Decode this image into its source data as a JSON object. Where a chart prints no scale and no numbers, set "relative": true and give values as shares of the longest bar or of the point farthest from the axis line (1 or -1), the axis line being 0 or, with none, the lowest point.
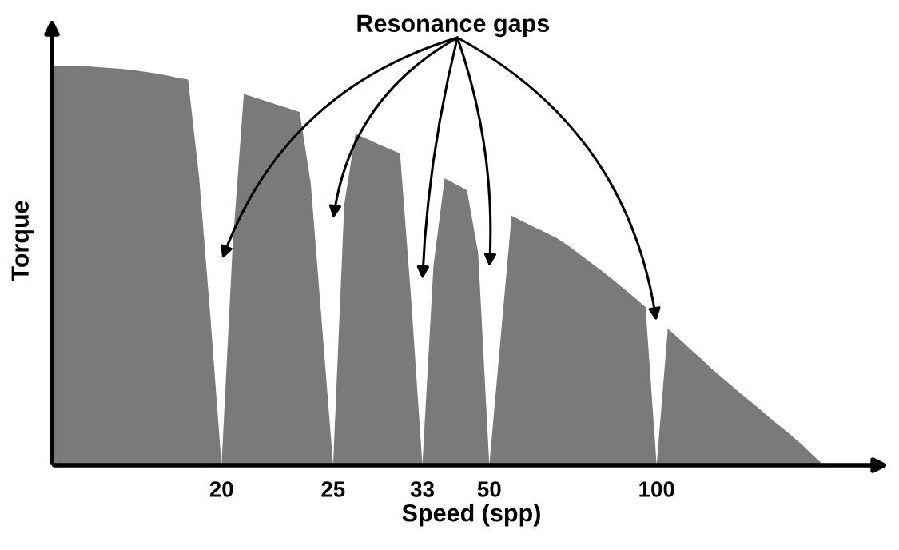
{
  "chart_data": {
    "type": "area",
    "relative": true,
    "xlabel": "Speed (spp)",
    "ylabel": "Torque",
    "annotations": [
      "Resonance gaps"
    ],
    "categories": [
      null,
      null,
      null,
      null,
      null,
      null,
      null,
      null,
      null,
      null,
      null,
      null,
      null,
      null,
      null,
      "20",
      null,
      null,
      null,
      null,
      null,
      null,
      null,
      null,
      null,
      "25",
      null,
      null,
      null,
      null,
      null,
      null,
      null,
      "33",
      null,
      null,
      null,
      null,
      null,
      "50",
      null,
      null,
      null,
      null,
      null,
      null,
      null,
      null,
      null,
      null,
      null,
      null,
      null,
      null,
      "100",
      null,
      null,
      null,
      null,
      null,
      null,
      null,
      null,
      null,
      null,
      null,
      null,
      null,
      null,
      null
    ],
    "series": [
      {
        "color": "#7a7a7a",
        "values": [
          1.0,
          1.0,
          0.999,
          0.998,
          0.996,
          0.994,
          0.992,
          0.989,
          0.985,
          0.981,
          0.976,
          0.97,
          0.965,
          0.717,
          0.371,
          0,
          0.551,
          0.929,
          0.92,
          0.911,
          0.902,
          0.893,
          0.884,
          0.704,
          0.352,
          0,
          0.652,
          0.829,
          0.817,
          0.804,
          0.792,
          0.78,
          0.414,
          0,
          0.5,
          0.718,
          0.703,
          0.688,
          0.531,
          0,
          0.314,
          0.624,
          0.61,
          0.596,
          0.583,
          0.569,
          0.551,
          0.53,
          0.509,
          0.488,
          0.466,
          0.443,
          0.42,
          0.396,
          0,
          0.342,
          0.317,
          0.291,
          0.266,
          0.24,
          0.216,
          0.192,
          0.169,
          0.146,
          0.122,
          0.099,
          0.076,
          0.052,
          0.025,
          0
        ]
      }
    ]
  }
}
